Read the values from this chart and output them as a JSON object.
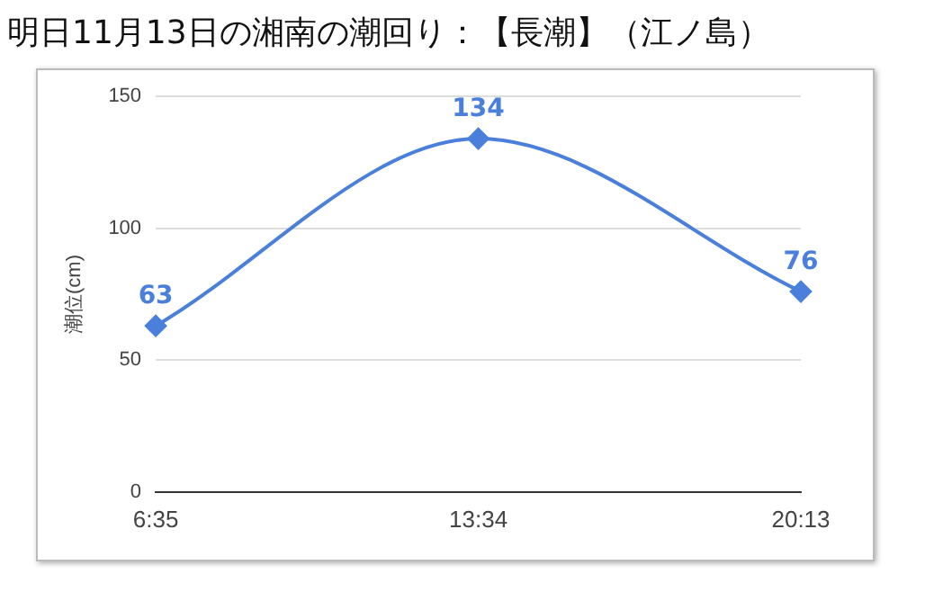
{
  "chart_data": {
    "type": "line",
    "title": "明日11月13日の湘南の潮回り：【長潮】（江ノ島）",
    "ylabel": "潮位(cm)",
    "categories": [
      "6:35",
      "13:34",
      "20:13"
    ],
    "series": [
      {
        "color": "#4a7fdb",
        "values": [
          63,
          134,
          76
        ]
      }
    ],
    "ylim": [
      0,
      150
    ],
    "yticks": [
      0,
      50,
      100,
      150
    ],
    "grid": "y",
    "legend": false,
    "marker": "diamond",
    "line_style": "solid",
    "data_labels": true
  }
}
